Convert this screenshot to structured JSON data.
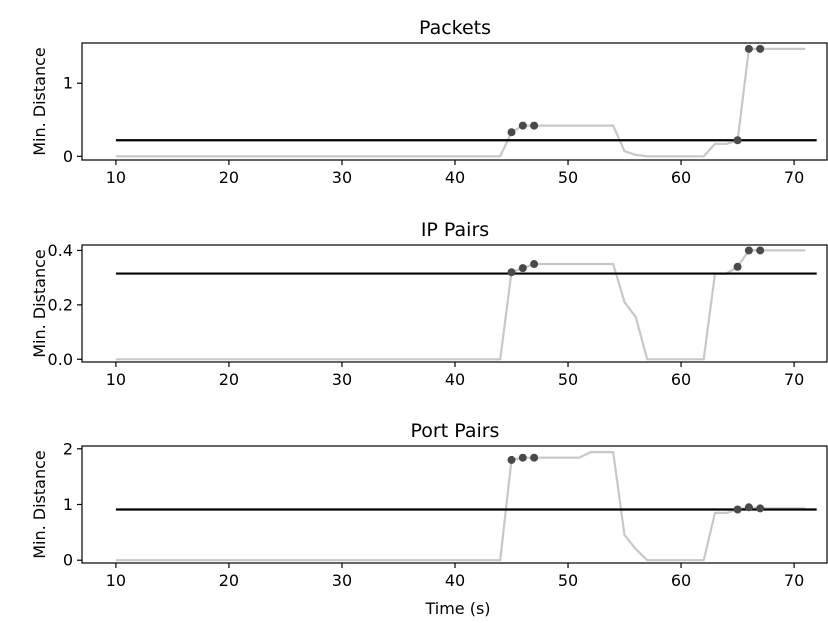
{
  "figure": {
    "xlabel": "Time (s)"
  },
  "colors": {
    "series_line": "#c8c8c8",
    "threshold_line": "#000000",
    "markers": "#4a4a4a",
    "axes": "#000000"
  },
  "chart_data": [
    {
      "type": "line",
      "title": "Packets",
      "ylabel": "Min. Distance",
      "xlabel": "",
      "xlim": [
        7,
        73
      ],
      "ylim": [
        -0.05,
        1.55
      ],
      "xticks": [
        "10",
        "20",
        "30",
        "40",
        "50",
        "60",
        "70"
      ],
      "yticks": [
        "0",
        "1"
      ],
      "ytick_values": [
        0,
        1
      ],
      "threshold": 0.22,
      "series": [
        {
          "x": [
            10,
            44,
            45,
            46,
            47,
            48,
            49,
            50,
            51,
            52,
            53,
            54,
            55,
            56,
            57,
            58,
            59,
            60,
            61,
            62,
            63,
            64,
            65,
            66,
            67,
            68,
            69,
            70,
            71
          ],
          "y": [
            0,
            0,
            0.33,
            0.42,
            0.42,
            0.42,
            0.42,
            0.42,
            0.42,
            0.42,
            0.42,
            0.42,
            0.07,
            0.02,
            0,
            0,
            0,
            0,
            0,
            0,
            0.17,
            0.17,
            0.22,
            1.47,
            1.47,
            1.47,
            1.47,
            1.47,
            1.47
          ]
        }
      ],
      "markers": {
        "x": [
          45,
          46,
          47,
          65,
          66,
          67
        ],
        "y": [
          0.33,
          0.42,
          0.42,
          0.22,
          1.47,
          1.47
        ]
      }
    },
    {
      "type": "line",
      "title": "IP Pairs",
      "ylabel": "Min. Distance",
      "xlabel": "",
      "xlim": [
        7,
        73
      ],
      "ylim": [
        -0.01,
        0.42
      ],
      "xticks": [
        "10",
        "20",
        "30",
        "40",
        "50",
        "60",
        "70"
      ],
      "yticks": [
        "0.0",
        "0.2",
        "0.4"
      ],
      "ytick_values": [
        0,
        0.2,
        0.4
      ],
      "threshold": 0.315,
      "series": [
        {
          "x": [
            10,
            44,
            45,
            46,
            47,
            48,
            49,
            50,
            51,
            52,
            53,
            54,
            55,
            56,
            57,
            58,
            59,
            60,
            61,
            62,
            63,
            64,
            65,
            66,
            67,
            68,
            69,
            70,
            71
          ],
          "y": [
            0,
            0,
            0.32,
            0.335,
            0.35,
            0.35,
            0.35,
            0.35,
            0.35,
            0.35,
            0.35,
            0.35,
            0.21,
            0.155,
            0,
            0,
            0,
            0,
            0,
            0,
            0.315,
            0.315,
            0.34,
            0.4,
            0.4,
            0.4,
            0.4,
            0.4,
            0.4
          ]
        }
      ],
      "markers": {
        "x": [
          45,
          46,
          47,
          65,
          66,
          67
        ],
        "y": [
          0.32,
          0.335,
          0.35,
          0.34,
          0.4,
          0.4
        ]
      }
    },
    {
      "type": "line",
      "title": "Port Pairs",
      "ylabel": "Min. Distance",
      "xlabel": "Time (s)",
      "xlim": [
        7,
        73
      ],
      "ylim": [
        -0.05,
        2.05
      ],
      "xticks": [
        "10",
        "20",
        "30",
        "40",
        "50",
        "60",
        "70"
      ],
      "yticks": [
        "0",
        "1",
        "2"
      ],
      "ytick_values": [
        0,
        1,
        2
      ],
      "threshold": 0.91,
      "series": [
        {
          "x": [
            10,
            44,
            45,
            46,
            47,
            48,
            49,
            50,
            51,
            52,
            53,
            54,
            55,
            56,
            57,
            58,
            59,
            60,
            61,
            62,
            63,
            64,
            65,
            66,
            67,
            68,
            69,
            70,
            71
          ],
          "y": [
            0,
            0,
            1.8,
            1.84,
            1.84,
            1.84,
            1.84,
            1.84,
            1.84,
            1.94,
            1.94,
            1.94,
            0.45,
            0.2,
            0,
            0,
            0,
            0,
            0,
            0,
            0.85,
            0.85,
            0.91,
            0.95,
            0.93,
            0.93,
            0.93,
            0.93,
            0.93
          ]
        }
      ],
      "markers": {
        "x": [
          45,
          46,
          47,
          65,
          66,
          67
        ],
        "y": [
          1.8,
          1.84,
          1.84,
          0.91,
          0.95,
          0.93
        ]
      }
    }
  ]
}
